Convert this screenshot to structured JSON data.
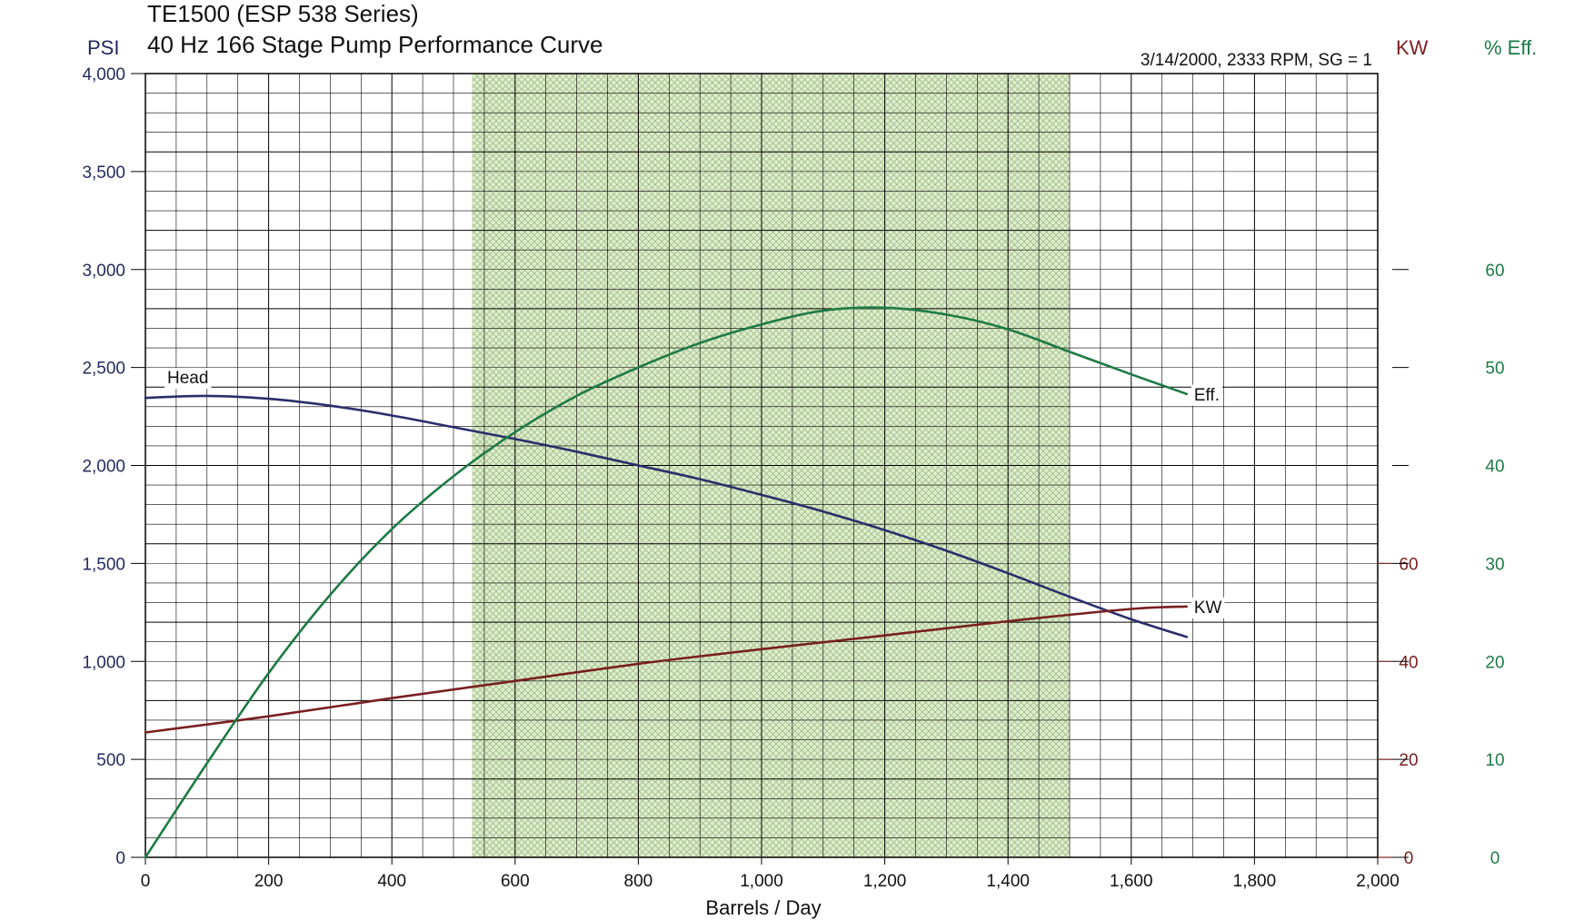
{
  "chart_data": {
    "type": "line",
    "title": "TE1500 (ESP 538 Series)",
    "subtitle": "40 Hz 166 Stage Pump Performance Curve",
    "info": "3/14/2000, 2333 RPM,  SG = 1",
    "xlabel": "Barrels / Day",
    "xlim": [
      0,
      2000
    ],
    "x_ticks": [
      "0",
      "200",
      "400",
      "600",
      "800",
      "1,000",
      "1,200",
      "1,400",
      "1,600",
      "1,800",
      "2,000"
    ],
    "grid": true,
    "shaded_range": [
      530,
      1500
    ],
    "axes": {
      "left": {
        "label": "PSI",
        "range": [
          0,
          4000
        ],
        "color": "#1f2a5a",
        "ticks": [
          "0",
          "500",
          "1,000",
          "1,500",
          "2,000",
          "2,500",
          "3,000",
          "3,500",
          "4,000"
        ]
      },
      "kw": {
        "label": "KW",
        "range": [
          0,
          160
        ],
        "color": "#7a1f1f",
        "ticks": [
          "0",
          "20",
          "40",
          "60"
        ]
      },
      "eff": {
        "label": "% Eff.",
        "range": [
          0,
          80
        ],
        "color": "#1e7a45",
        "ticks": [
          "0",
          "10",
          "20",
          "30",
          "40",
          "50",
          "60"
        ]
      }
    },
    "series": [
      {
        "name": "Head",
        "axis": "left",
        "color": "#2a2f6b",
        "x": [
          0,
          100,
          200,
          300,
          400,
          500,
          600,
          700,
          800,
          900,
          1000,
          1100,
          1200,
          1300,
          1400,
          1500,
          1600,
          1690
        ],
        "y": [
          2345,
          2355,
          2340,
          2305,
          2255,
          2195,
          2135,
          2070,
          2000,
          1930,
          1850,
          1765,
          1670,
          1565,
          1450,
          1330,
          1215,
          1125
        ]
      },
      {
        "name": "KW",
        "axis": "kw",
        "color": "#7a1f1f",
        "x": [
          0,
          200,
          400,
          600,
          800,
          1000,
          1200,
          1400,
          1600,
          1690
        ],
        "y": [
          25.5,
          28.8,
          32.5,
          36.0,
          39.5,
          42.5,
          45.3,
          48.2,
          50.7,
          51.2
        ]
      },
      {
        "name": "Eff.",
        "axis": "eff",
        "color": "#1e7a45",
        "x": [
          0,
          100,
          200,
          300,
          400,
          500,
          600,
          700,
          800,
          900,
          1000,
          1100,
          1200,
          1300,
          1400,
          1500,
          1600,
          1690
        ],
        "y": [
          0,
          9.6,
          18.8,
          26.8,
          33.5,
          38.9,
          43.4,
          47.1,
          50.0,
          52.5,
          54.4,
          55.8,
          56.1,
          55.4,
          53.9,
          51.6,
          49.3,
          47.3
        ]
      }
    ]
  }
}
